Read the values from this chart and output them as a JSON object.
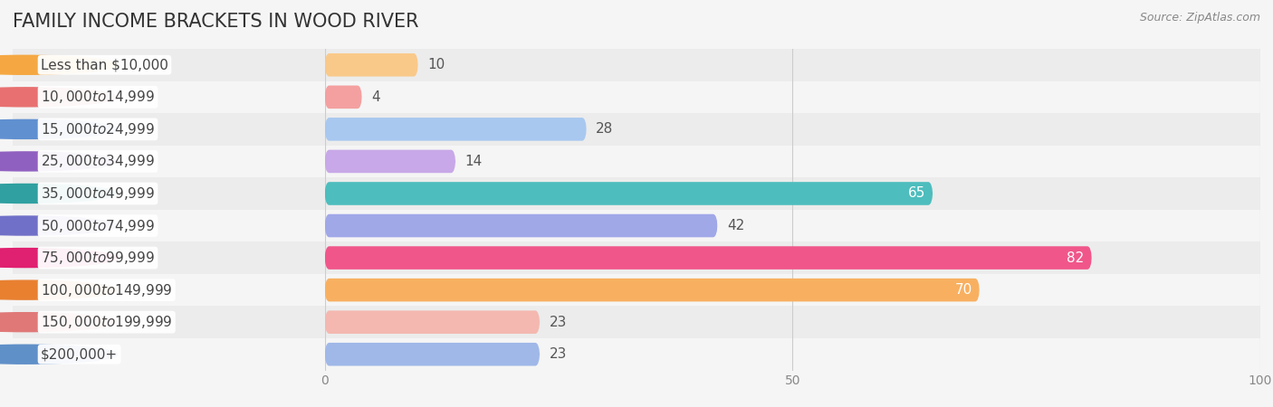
{
  "title": "FAMILY INCOME BRACKETS IN WOOD RIVER",
  "source": "Source: ZipAtlas.com",
  "categories": [
    "Less than $10,000",
    "$10,000 to $14,999",
    "$15,000 to $24,999",
    "$25,000 to $34,999",
    "$35,000 to $49,999",
    "$50,000 to $74,999",
    "$75,000 to $99,999",
    "$100,000 to $149,999",
    "$150,000 to $199,999",
    "$200,000+"
  ],
  "values": [
    10,
    4,
    28,
    14,
    65,
    42,
    82,
    70,
    23,
    23
  ],
  "bar_colors": [
    "#f9c98a",
    "#f4a0a0",
    "#a8c8f0",
    "#c8a8e8",
    "#4dbdbd",
    "#a0a8e8",
    "#f0568a",
    "#f8b060",
    "#f4b8b0",
    "#a0b8e8"
  ],
  "circle_colors": [
    "#f5a842",
    "#e87070",
    "#6090d0",
    "#9060c0",
    "#30a0a0",
    "#7070c8",
    "#e02070",
    "#e88030",
    "#e07878",
    "#6090c8"
  ],
  "row_colors": [
    "#ececec",
    "#f5f5f5",
    "#ececec",
    "#f5f5f5",
    "#ececec",
    "#f5f5f5",
    "#ececec",
    "#f5f5f5",
    "#ececec",
    "#f5f5f5"
  ],
  "xlim": [
    0,
    100
  ],
  "xticks": [
    0,
    50,
    100
  ],
  "bar_height": 0.72,
  "background_color": "#f5f5f5",
  "title_fontsize": 15,
  "label_fontsize": 11,
  "value_fontsize": 11,
  "value_threshold_white": 55
}
